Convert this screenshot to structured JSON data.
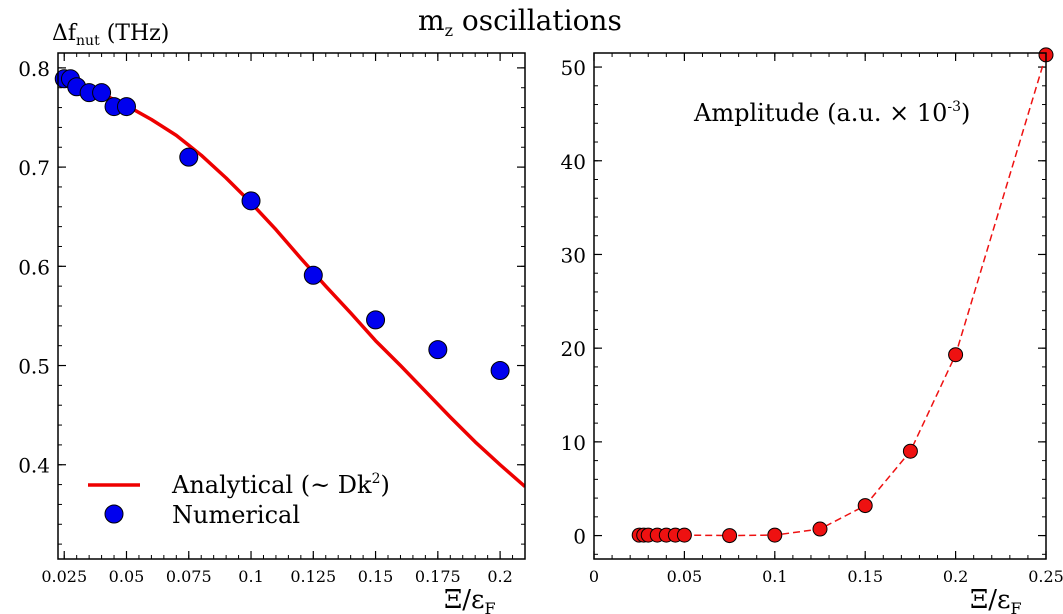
{
  "figure": {
    "suptitle_main": "m",
    "suptitle_sub": "z",
    "suptitle_rest": " oscillations"
  },
  "chart_data": [
    {
      "type": "scatter",
      "ylabel_main": "Δf",
      "ylabel_sub": "nut",
      "ylabel_rest": " (THz)",
      "xlabel_main": "Ξ/ε",
      "xlabel_sub": "F",
      "xlim": [
        0.0225,
        0.21
      ],
      "ylim": [
        0.305,
        0.815
      ],
      "xticks": [
        0.025,
        0.05,
        0.075,
        0.1,
        0.125,
        0.15,
        0.175,
        0.2
      ],
      "xtick_labels": [
        "0.025",
        "0.05",
        "0.075",
        "0.1",
        "0.125",
        "0.15",
        "0.175",
        "0.2"
      ],
      "yticks": [
        0.4,
        0.5,
        0.6,
        0.7,
        0.8
      ],
      "ytick_labels": [
        "0.4",
        "0.5",
        "0.6",
        "0.7",
        "0.8"
      ],
      "legend_position": "bottom-left",
      "series": [
        {
          "name": "Analytical (~ Dk²)",
          "name_main": "Analytical (~ Dk",
          "name_sup": "2",
          "name_end": ")",
          "kind": "line",
          "color": "#ee0000",
          "x": [
            0.025,
            0.03,
            0.035,
            0.04,
            0.045,
            0.05,
            0.06,
            0.07,
            0.075,
            0.08,
            0.09,
            0.1,
            0.11,
            0.12,
            0.125,
            0.13,
            0.14,
            0.15,
            0.16,
            0.17,
            0.18,
            0.19,
            0.2,
            0.21
          ],
          "y": [
            0.788,
            0.784,
            0.779,
            0.774,
            0.768,
            0.762,
            0.748,
            0.732,
            0.722,
            0.712,
            0.689,
            0.664,
            0.637,
            0.608,
            0.594,
            0.58,
            0.553,
            0.525,
            0.5,
            0.474,
            0.448,
            0.423,
            0.4,
            0.378
          ]
        },
        {
          "name": "Numerical",
          "kind": "scatter",
          "color": "#0000ee",
          "x": [
            0.025,
            0.0275,
            0.03,
            0.035,
            0.04,
            0.045,
            0.05,
            0.075,
            0.1,
            0.125,
            0.15,
            0.175,
            0.2
          ],
          "y": [
            0.789,
            0.789,
            0.781,
            0.775,
            0.775,
            0.761,
            0.761,
            0.71,
            0.666,
            0.591,
            0.546,
            0.516,
            0.495
          ]
        }
      ]
    },
    {
      "type": "line",
      "annotation_main": "Amplitude (a.u. × 10",
      "annotation_sup": "-3",
      "annotation_end": ")",
      "xlabel_main": "Ξ/ε",
      "xlabel_sub": "F",
      "xlim": [
        0.0,
        0.25
      ],
      "ylim": [
        -2.5,
        51.5
      ],
      "xticks": [
        0,
        0.05,
        0.1,
        0.15,
        0.2,
        0.25
      ],
      "xtick_labels": [
        "0",
        "0.05",
        "0.1",
        "0.15",
        "0.2",
        "0.25"
      ],
      "yticks": [
        0,
        10,
        20,
        30,
        40,
        50
      ],
      "ytick_labels": [
        "0",
        "10",
        "20",
        "30",
        "40",
        "50"
      ],
      "series": [
        {
          "kind": "line-markers",
          "color": "#ee1111",
          "x": [
            0.025,
            0.0275,
            0.03,
            0.035,
            0.04,
            0.045,
            0.05,
            0.075,
            0.1,
            0.125,
            0.15,
            0.175,
            0.2,
            0.25
          ],
          "y": [
            0.05,
            0.05,
            0.05,
            0.05,
            0.05,
            0.05,
            0.05,
            0.0,
            0.05,
            0.7,
            3.2,
            9.0,
            19.3,
            51.3
          ]
        }
      ]
    }
  ]
}
